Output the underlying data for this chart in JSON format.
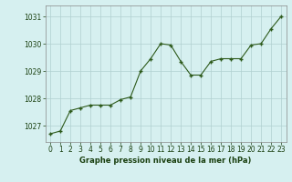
{
  "x": [
    0,
    1,
    2,
    3,
    4,
    5,
    6,
    7,
    8,
    9,
    10,
    11,
    12,
    13,
    14,
    15,
    16,
    17,
    18,
    19,
    20,
    21,
    22,
    23
  ],
  "y": [
    1026.7,
    1026.8,
    1027.55,
    1027.65,
    1027.75,
    1027.75,
    1027.75,
    1027.95,
    1028.05,
    1029.0,
    1029.45,
    1030.0,
    1029.95,
    1029.35,
    1028.85,
    1028.85,
    1029.35,
    1029.45,
    1029.45,
    1029.45,
    1029.95,
    1030.0,
    1030.55,
    1031.0
  ],
  "line_color": "#2d5a1b",
  "marker_color": "#2d5a1b",
  "bg_color": "#d6f0f0",
  "grid_color": "#b0d0d0",
  "title": "Graphe pression niveau de la mer (hPa)",
  "title_color": "#1a4010",
  "ylim": [
    1026.4,
    1031.4
  ],
  "yticks": [
    1027,
    1028,
    1029,
    1030,
    1031
  ],
  "xlim": [
    -0.5,
    23.5
  ],
  "xticks": [
    0,
    1,
    2,
    3,
    4,
    5,
    6,
    7,
    8,
    9,
    10,
    11,
    12,
    13,
    14,
    15,
    16,
    17,
    18,
    19,
    20,
    21,
    22,
    23
  ],
  "tick_fontsize": 5.5,
  "title_fontsize": 6.0
}
